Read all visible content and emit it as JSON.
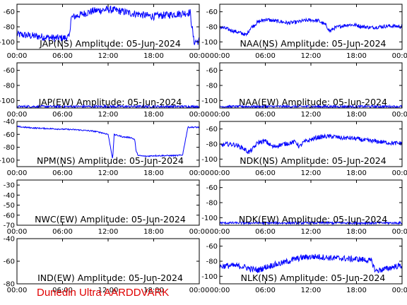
{
  "footer": "Dunedin Ultra AARDDVARK",
  "colors": {
    "trace": "#0000ff",
    "axes": "#000000",
    "footer": "#e00000"
  },
  "x_ticks": [
    "00:00",
    "06:00",
    "12:00",
    "18:00",
    "00:00"
  ],
  "chart_data": [
    {
      "type": "line",
      "title": "JAP(NS) Amplitude: 05-Jun-2024",
      "xlim": [
        0,
        24
      ],
      "ylim": [
        -110,
        -50
      ],
      "yticks": [
        -100,
        -80,
        -60
      ],
      "series": [
        {
          "x": [
            0,
            1,
            2,
            3,
            4,
            5,
            6,
            6.9,
            7.1,
            8,
            9,
            10,
            11,
            12,
            13,
            14,
            15,
            16,
            17,
            18,
            19,
            20,
            21,
            22,
            22.8,
            23.3,
            24
          ],
          "y": [
            -90,
            -91,
            -92,
            -93,
            -94,
            -95,
            -95,
            -94,
            -68,
            -65,
            -62,
            -59,
            -58,
            -57,
            -58,
            -60,
            -62,
            -63,
            -65,
            -66,
            -65,
            -64,
            -63,
            -62,
            -61,
            -100,
            -99
          ],
          "noise": 5
        }
      ]
    },
    {
      "type": "line",
      "title": "NAA(NS) Amplitude: 05-Jun-2024",
      "xlim": [
        0,
        24
      ],
      "ylim": [
        -110,
        -50
      ],
      "yticks": [
        -100,
        -80,
        -60
      ],
      "series": [
        {
          "x": [
            0,
            1,
            2,
            3,
            3.5,
            4,
            5,
            6,
            7,
            8,
            9,
            10,
            11,
            12,
            13,
            14,
            14.5,
            15,
            16,
            17,
            18,
            19,
            20,
            21,
            22,
            23,
            24
          ],
          "y": [
            -80,
            -83,
            -86,
            -89,
            -91,
            -82,
            -74,
            -70,
            -72,
            -73,
            -75,
            -74,
            -72,
            -71,
            -72,
            -78,
            -86,
            -82,
            -79,
            -77,
            -78,
            -80,
            -81,
            -80,
            -79,
            -79,
            -80
          ],
          "noise": 2.5
        }
      ]
    },
    {
      "type": "line",
      "title": "JAP(EW) Amplitude: 05-Jun-2024",
      "xlim": [
        0,
        24
      ],
      "ylim": [
        -110,
        -50
      ],
      "yticks": [
        -100,
        -80,
        -60
      ],
      "series": [
        {
          "x": [
            0,
            24
          ],
          "y": [
            -108,
            -108
          ],
          "noise": 1.5
        }
      ]
    },
    {
      "type": "line",
      "title": "NAA(EW) Amplitude: 05-Jun-2024",
      "xlim": [
        0,
        24
      ],
      "ylim": [
        -110,
        -50
      ],
      "yticks": [
        -100,
        -80,
        -60
      ],
      "series": [
        {
          "x": [
            0,
            24
          ],
          "y": [
            -108,
            -108
          ],
          "noise": 1.5
        }
      ]
    },
    {
      "type": "line",
      "title": "NPM(NS) Amplitude: 05-Jun-2024",
      "xlim": [
        0,
        24
      ],
      "ylim": [
        -110,
        -40
      ],
      "yticks": [
        -100,
        -80,
        -60,
        -40
      ],
      "series": [
        {
          "x": [
            0,
            2,
            4,
            6,
            8,
            10,
            11,
            12,
            12.6,
            12.8,
            13,
            13.4,
            14,
            15,
            15.5,
            15.7,
            16,
            17,
            18,
            19,
            20,
            21,
            21.8,
            22.5,
            23,
            24
          ],
          "y": [
            -48,
            -50,
            -51,
            -52,
            -53,
            -55,
            -57,
            -60,
            -98,
            -60,
            -61,
            -62,
            -64,
            -65,
            -68,
            -87,
            -93,
            -94,
            -93,
            -93,
            -93,
            -93,
            -92,
            -49,
            -49,
            -49
          ],
          "noise": 1
        }
      ]
    },
    {
      "type": "line",
      "title": "NDK(NS) Amplitude: 05-Jun-2024",
      "xlim": [
        0,
        24
      ],
      "ylim": [
        -110,
        -50
      ],
      "yticks": [
        -100,
        -80,
        -60
      ],
      "series": [
        {
          "x": [
            0,
            1,
            2,
            3,
            3.8,
            4.4,
            5,
            6,
            7,
            8,
            9,
            10,
            10.5,
            11,
            12,
            13,
            14,
            15,
            16,
            17,
            18,
            19,
            20,
            21,
            22,
            23,
            24
          ],
          "y": [
            -82,
            -80,
            -81,
            -85,
            -91,
            -86,
            -78,
            -76,
            -84,
            -81,
            -79,
            -77,
            -84,
            -78,
            -74,
            -71,
            -70,
            -70,
            -72,
            -72,
            -73,
            -75,
            -76,
            -77,
            -78,
            -79,
            -79
          ],
          "noise": 3
        }
      ]
    },
    {
      "type": "line",
      "title": "NWC(EW) Amplitude: 05-Jun-2024",
      "xlim": [
        0,
        24
      ],
      "ylim": [
        -70,
        -25
      ],
      "yticks": [
        -70,
        -60,
        -50,
        -40,
        -30
      ],
      "series": []
    },
    {
      "type": "line",
      "title": "NDK(EW) Amplitude: 05-Jun-2024",
      "xlim": [
        0,
        24
      ],
      "ylim": [
        -110,
        -50
      ],
      "yticks": [
        -100,
        -80,
        -60
      ],
      "series": [
        {
          "x": [
            0,
            24
          ],
          "y": [
            -107,
            -107
          ],
          "noise": 1.5
        }
      ]
    },
    {
      "type": "line",
      "title": "IND(EW) Amplitude: 05-Jun-2024",
      "xlim": [
        0,
        24
      ],
      "ylim": [
        -80,
        -40
      ],
      "yticks": [
        -80,
        -60,
        -40
      ],
      "series": []
    },
    {
      "type": "line",
      "title": "NLK(NS) Amplitude: 05-Jun-2024",
      "xlim": [
        0,
        24
      ],
      "ylim": [
        -110,
        -50
      ],
      "yticks": [
        -100,
        -80,
        -60
      ],
      "series": [
        {
          "x": [
            0,
            1,
            2,
            3,
            4,
            5,
            6,
            7,
            8,
            9,
            10,
            11,
            12,
            13,
            14,
            15,
            16,
            17,
            18,
            19,
            20,
            20.5,
            21,
            22,
            23,
            24
          ],
          "y": [
            -87,
            -86,
            -86,
            -87,
            -90,
            -92,
            -88,
            -85,
            -83,
            -80,
            -77,
            -75,
            -74,
            -74,
            -75,
            -76,
            -76,
            -77,
            -77,
            -78,
            -80,
            -93,
            -92,
            -90,
            -87,
            -86
          ],
          "noise": 4
        }
      ]
    }
  ]
}
